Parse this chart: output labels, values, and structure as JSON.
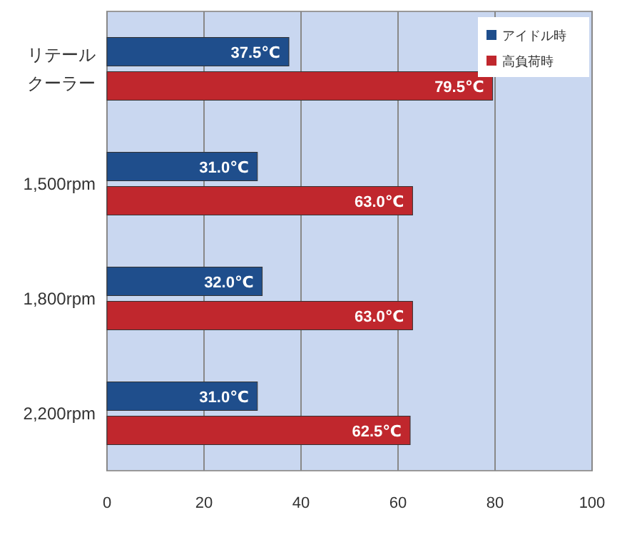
{
  "chart_data": {
    "type": "bar",
    "orientation": "horizontal",
    "categories": [
      "リテールクーラー",
      "1,500rpm",
      "1,800rpm",
      "2,200rpm"
    ],
    "series": [
      {
        "name": "アイドル時",
        "color": "#1f4e8c",
        "values": [
          37.5,
          31.0,
          32.0,
          31.0
        ],
        "value_labels": [
          "37.5℃",
          "31.0℃",
          "32.0℃",
          "31.0℃"
        ]
      },
      {
        "name": "高負荷時",
        "color": "#c0272d",
        "values": [
          79.5,
          63.0,
          63.0,
          62.5
        ],
        "value_labels": [
          "79.5℃",
          "63.0℃",
          "63.0℃",
          "62.5℃"
        ]
      }
    ],
    "xlim": [
      0,
      100
    ],
    "xticks": [
      0,
      20,
      40,
      60,
      80,
      100
    ],
    "grid": "x",
    "legend": "top right"
  }
}
